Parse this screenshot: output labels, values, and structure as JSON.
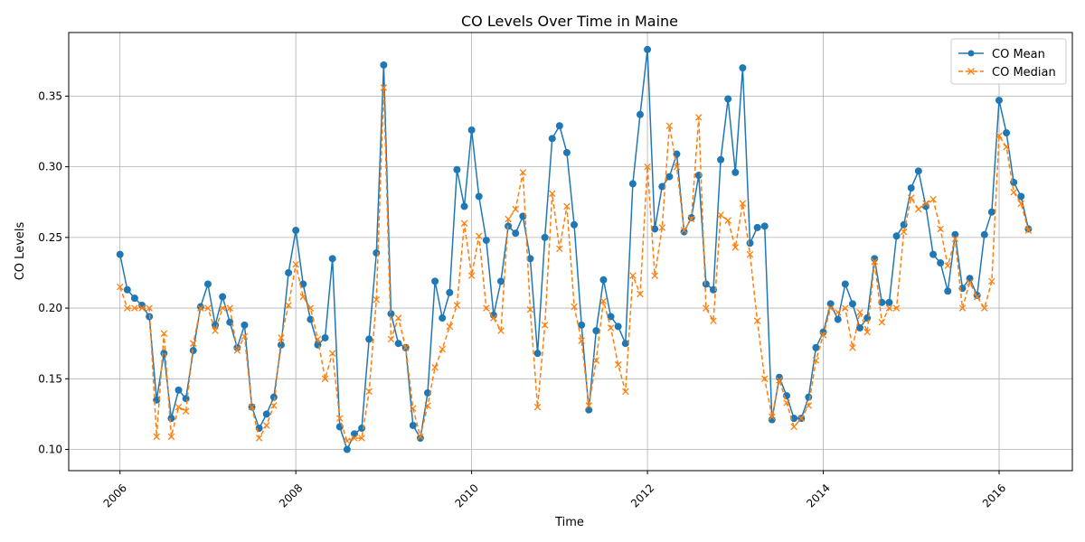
{
  "chart_data": {
    "type": "line",
    "title": "CO Levels Over Time in Maine",
    "xlabel": "Time",
    "ylabel": "CO Levels",
    "x_ticks": [
      "2006",
      "2008",
      "2010",
      "2012",
      "2014",
      "2016"
    ],
    "y_ticks": [
      "0.10",
      "0.15",
      "0.20",
      "0.25",
      "0.30",
      "0.35"
    ],
    "xlim": [
      "2005-06",
      "2016-11"
    ],
    "ylim": [
      0.085,
      0.395
    ],
    "grid": true,
    "legend_position": "top-right",
    "x_start": "2006-01",
    "x_step": "1 month",
    "series": [
      {
        "name": "CO Mean",
        "color": "#1f77b4",
        "marker": "circle",
        "line": "solid",
        "values": [
          0.238,
          0.213,
          0.207,
          0.202,
          0.194,
          0.135,
          0.168,
          0.122,
          0.142,
          0.136,
          0.17,
          0.201,
          0.217,
          0.188,
          0.208,
          0.19,
          0.172,
          0.188,
          0.13,
          0.115,
          0.125,
          0.137,
          0.174,
          0.225,
          0.255,
          0.217,
          0.192,
          0.174,
          0.179,
          0.235,
          0.116,
          0.1,
          0.111,
          0.115,
          0.178,
          0.239,
          0.372,
          0.196,
          0.175,
          0.172,
          0.117,
          0.108,
          0.14,
          0.219,
          0.193,
          0.211,
          0.298,
          0.272,
          0.326,
          0.279,
          0.248,
          0.195,
          0.219,
          0.258,
          0.253,
          0.265,
          0.235,
          0.168,
          0.25,
          0.32,
          0.329,
          0.31,
          0.259,
          0.188,
          0.128,
          0.184,
          0.22,
          0.194,
          0.187,
          0.175,
          0.288,
          0.337,
          0.383,
          0.256,
          0.286,
          0.293,
          0.309,
          0.254,
          0.264,
          0.294,
          0.217,
          0.213,
          0.305,
          0.348,
          0.296,
          0.37,
          0.246,
          0.257,
          0.258,
          0.121,
          0.151,
          0.138,
          0.122,
          0.122,
          0.137,
          0.172,
          0.183,
          0.203,
          0.192,
          0.217,
          0.203,
          0.186,
          0.193,
          0.235,
          0.204,
          0.204,
          0.251,
          0.259,
          0.285,
          0.297,
          0.272,
          0.238,
          0.232,
          0.212,
          0.252,
          0.214,
          0.221,
          0.209,
          0.252,
          0.268,
          0.347,
          0.324,
          0.289,
          0.279,
          0.256
        ]
      },
      {
        "name": "CO Median",
        "color": "#ff7f0e",
        "marker": "x",
        "line": "dashed",
        "values": [
          0.215,
          0.2,
          0.2,
          0.2,
          0.2,
          0.109,
          0.182,
          0.109,
          0.13,
          0.127,
          0.175,
          0.2,
          0.2,
          0.184,
          0.2,
          0.2,
          0.17,
          0.18,
          0.13,
          0.108,
          0.117,
          0.131,
          0.179,
          0.202,
          0.231,
          0.208,
          0.2,
          0.178,
          0.15,
          0.168,
          0.122,
          0.106,
          0.108,
          0.108,
          0.141,
          0.206,
          0.356,
          0.178,
          0.193,
          0.172,
          0.129,
          0.109,
          0.131,
          0.158,
          0.171,
          0.187,
          0.202,
          0.26,
          0.223,
          0.251,
          0.2,
          0.193,
          0.184,
          0.263,
          0.27,
          0.296,
          0.199,
          0.13,
          0.188,
          0.281,
          0.242,
          0.272,
          0.201,
          0.177,
          0.131,
          0.163,
          0.205,
          0.186,
          0.16,
          0.141,
          0.223,
          0.21,
          0.3,
          0.223,
          0.257,
          0.329,
          0.3,
          0.255,
          0.263,
          0.335,
          0.2,
          0.191,
          0.266,
          0.262,
          0.243,
          0.274,
          0.238,
          0.191,
          0.15,
          0.123,
          0.149,
          0.133,
          0.116,
          0.122,
          0.131,
          0.163,
          0.181,
          0.2,
          0.197,
          0.2,
          0.172,
          0.197,
          0.183,
          0.233,
          0.19,
          0.2,
          0.2,
          0.254,
          0.278,
          0.27,
          0.274,
          0.277,
          0.256,
          0.23,
          0.249,
          0.2,
          0.218,
          0.208,
          0.2,
          0.219,
          0.322,
          0.314,
          0.282,
          0.274,
          0.255
        ]
      }
    ]
  }
}
